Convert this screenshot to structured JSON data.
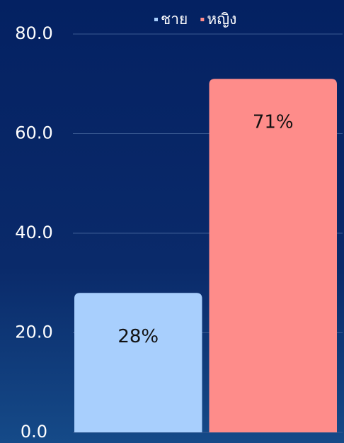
{
  "chart_data": {
    "type": "bar",
    "categories": [
      null
    ],
    "series": [
      {
        "name": "ชาย",
        "color": "#a8cffd",
        "values": [
          28
        ],
        "value_labels": [
          "28%"
        ]
      },
      {
        "name": "หญิง",
        "color": "#fe8c8a",
        "values": [
          71
        ],
        "value_labels": [
          "71%"
        ]
      }
    ],
    "ylim": [
      0,
      80
    ],
    "yticks": [
      {
        "value": 0,
        "label": "0.0"
      },
      {
        "value": 20,
        "label": "20.0"
      },
      {
        "value": 40,
        "label": "40.0"
      },
      {
        "value": 60,
        "label": "60.0"
      },
      {
        "value": 80,
        "label": "80.0"
      }
    ],
    "grid": true,
    "legend": "top"
  }
}
